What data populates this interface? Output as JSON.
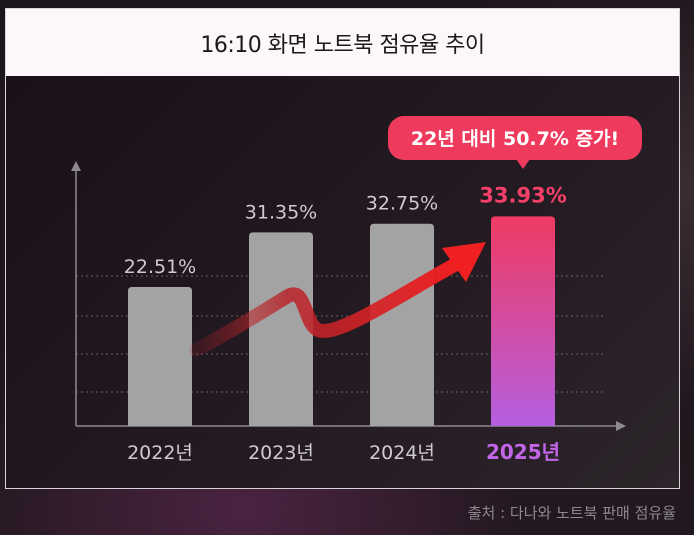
{
  "title": "16:10 화면 노트북 점유율 추이",
  "source": "출처 : 다나와 노트북 판매 점유율",
  "callout": "22년 대비 50.7% 증가!",
  "colors": {
    "bar_default": "#a3a3a3",
    "bar_highlight_top": "#ef3b62",
    "bar_highlight_bottom": "#b45fe0",
    "highlight_value": "#f5406a",
    "highlight_year": "#c265e8",
    "callout_bg": "#ee3a5c",
    "arrow_start": "#b8242a",
    "arrow_end": "#f01f22",
    "label_default": "#cfcbcf"
  },
  "chart_data": {
    "type": "bar",
    "title": "16:10 화면 노트북 점유율 추이",
    "categories": [
      "2022년",
      "2023년",
      "2024년",
      "2025년"
    ],
    "values": [
      22.51,
      31.35,
      32.75,
      33.93
    ],
    "value_labels": [
      "22.51%",
      "31.35%",
      "32.75%",
      "33.93%"
    ],
    "highlight_index": 3,
    "unit": "%",
    "ylim": [
      0,
      40
    ],
    "grid": true,
    "annotation": "22년 대비 50.7% 증가!"
  }
}
